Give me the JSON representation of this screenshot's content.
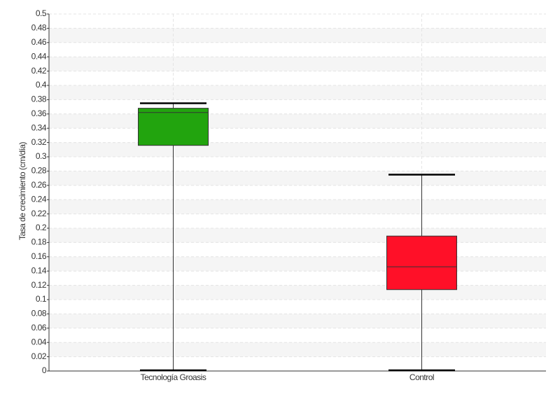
{
  "chart_data": {
    "type": "box",
    "ylabel": "Tasa de crecimiento (cm/día)",
    "categories": [
      "Tecnología Groasis",
      "Control"
    ],
    "boxes": [
      {
        "min": 0,
        "q1": 0.316,
        "median": 0.362,
        "q3": 0.368,
        "max": 0.375,
        "color": "#22a40e"
      },
      {
        "min": 0,
        "q1": 0.114,
        "median": 0.146,
        "q3": 0.189,
        "max": 0.275,
        "color": "#ff1028"
      }
    ],
    "ylim": [
      0,
      0.5
    ],
    "yticks": [
      0,
      0.02,
      0.04,
      0.06,
      0.08,
      0.1,
      0.12,
      0.14,
      0.16,
      0.18,
      0.2,
      0.22,
      0.24,
      0.26,
      0.28,
      0.3,
      0.32,
      0.34,
      0.36,
      0.38,
      0.4,
      0.42,
      0.44,
      0.46,
      0.48,
      0.5
    ],
    "grid": true
  }
}
